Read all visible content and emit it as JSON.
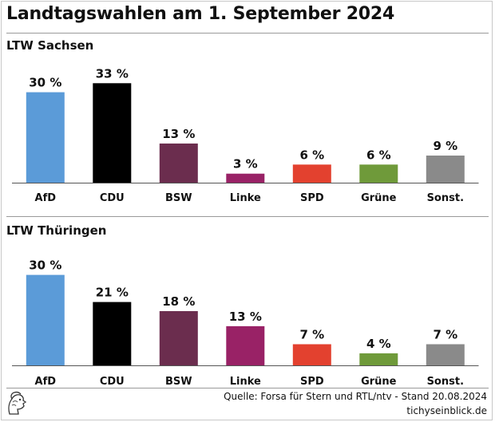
{
  "title": "Landtagswahlen am 1. September 2024",
  "colors": {
    "AfD": "#5b9bd8",
    "CDU": "#000000",
    "BSW": "#6b2d4e",
    "Linke": "#992266",
    "SPD": "#e3412f",
    "Grüne": "#6f9a3a",
    "Sonst.": "#8a8a8a"
  },
  "chart_data": [
    {
      "type": "bar",
      "title": "LTW Sachsen",
      "categories": [
        "AfD",
        "CDU",
        "BSW",
        "Linke",
        "SPD",
        "Grüne",
        "Sonst."
      ],
      "values": [
        30,
        33,
        13,
        3,
        6,
        6,
        9
      ],
      "value_labels": [
        "30 %",
        "33 %",
        "13 %",
        "3 %",
        "6 %",
        "6 %",
        "9 %"
      ],
      "unit": "%",
      "grid": false,
      "legend": "none"
    },
    {
      "type": "bar",
      "title": "LTW Thüringen",
      "categories": [
        "AfD",
        "CDU",
        "BSW",
        "Linke",
        "SPD",
        "Grüne",
        "Sonst."
      ],
      "values": [
        30,
        21,
        18,
        13,
        7,
        4,
        7
      ],
      "value_labels": [
        "30 %",
        "21 %",
        "18 %",
        "13 %",
        "7 %",
        "4 %",
        "7 %"
      ],
      "unit": "%",
      "grid": false,
      "legend": "none"
    }
  ],
  "footer": {
    "source": "Quelle: Forsa für Stern und RTL/ntv - Stand 20.08.2024",
    "site": "tichyseinblick.de",
    "logo_icon": "athena-head-icon"
  }
}
